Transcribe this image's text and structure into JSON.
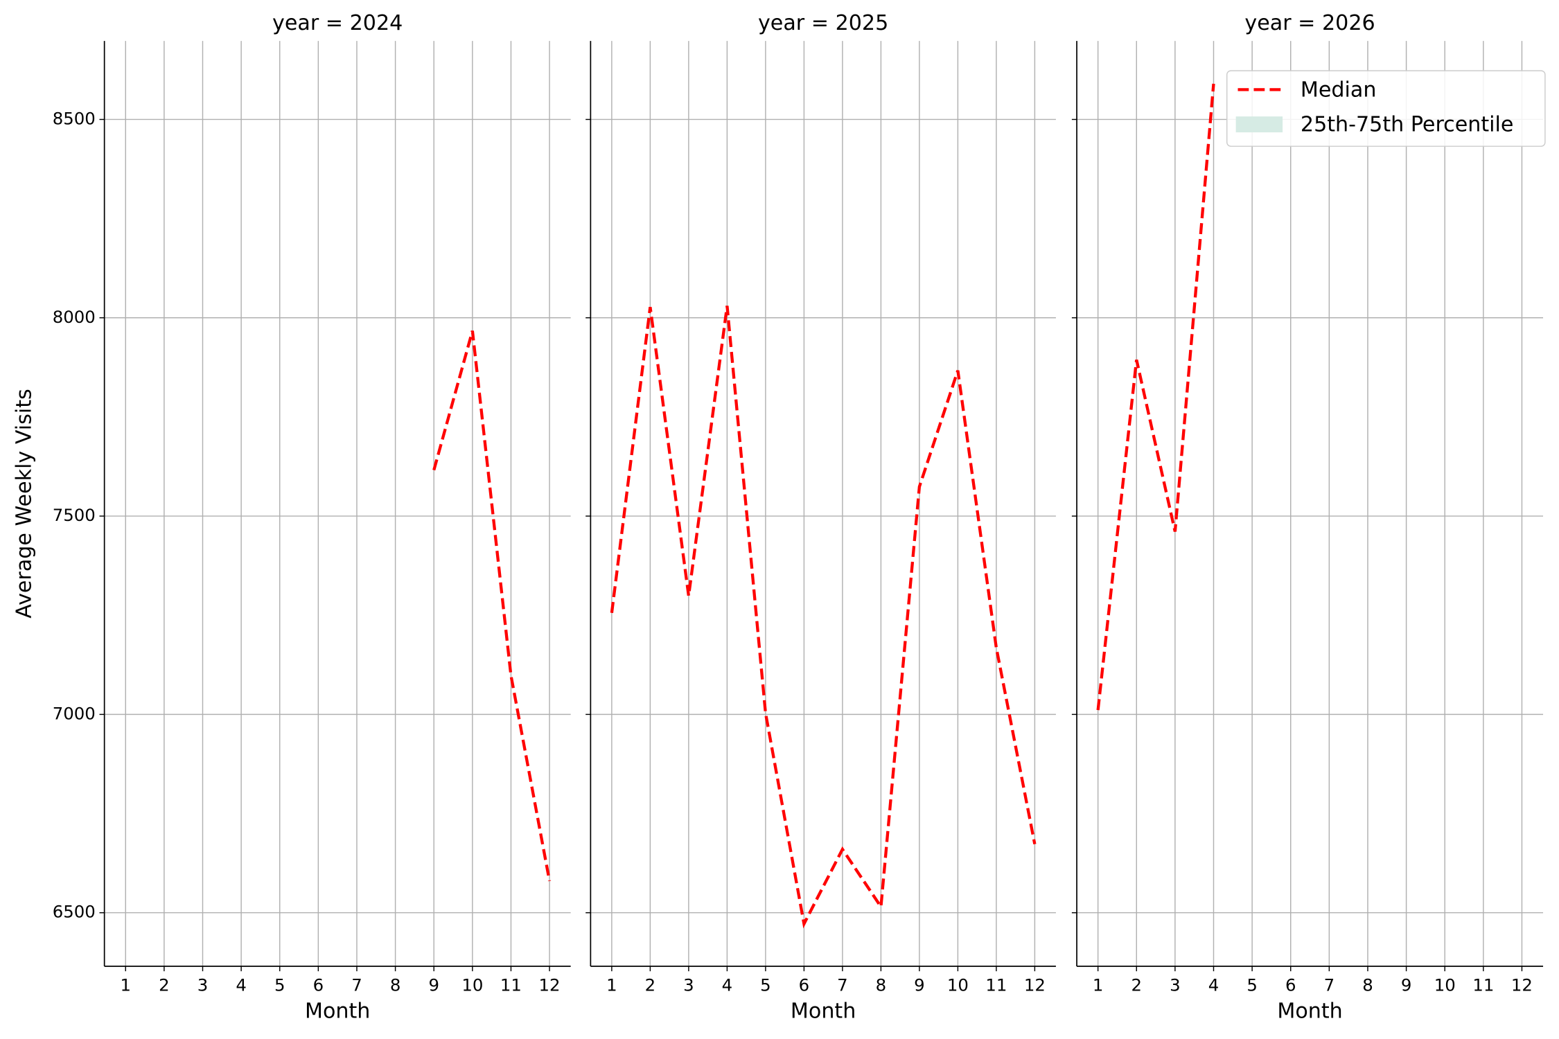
{
  "chart_data": [
    {
      "type": "line",
      "title": "year = 2024",
      "xlabel": "Month",
      "ylabel": "Average Weekly Visits",
      "x": [
        1,
        2,
        3,
        4,
        5,
        6,
        7,
        8,
        9,
        10,
        11,
        12
      ],
      "series": [
        {
          "name": "Median",
          "color": "#ff0000",
          "linestyle": "dashed",
          "values": [
            null,
            null,
            null,
            null,
            null,
            null,
            null,
            null,
            7616,
            7967,
            7098,
            6580
          ]
        }
      ],
      "xlim": [
        0.45,
        12.55
      ],
      "ylim": [
        6365,
        8698
      ],
      "xticks": [
        1,
        2,
        3,
        4,
        5,
        6,
        7,
        8,
        9,
        10,
        11,
        12
      ],
      "yticks": [
        6500,
        7000,
        7500,
        8000,
        8500
      ],
      "grid": true
    },
    {
      "type": "line",
      "title": "year = 2025",
      "xlabel": "Month",
      "x": [
        1,
        2,
        3,
        4,
        5,
        6,
        7,
        8,
        9,
        10,
        11,
        12
      ],
      "series": [
        {
          "name": "Median",
          "color": "#ff0000",
          "linestyle": "dashed",
          "values": [
            7256,
            8027,
            7299,
            8030,
            7003,
            6472,
            6660,
            6515,
            7574,
            7867,
            7168,
            6673
          ]
        }
      ],
      "xlim": [
        0.45,
        12.55
      ],
      "ylim": [
        6365,
        8698
      ],
      "xticks": [
        1,
        2,
        3,
        4,
        5,
        6,
        7,
        8,
        9,
        10,
        11,
        12
      ],
      "yticks": [
        6500,
        7000,
        7500,
        8000,
        8500
      ],
      "grid": true
    },
    {
      "type": "line",
      "title": "year = 2026",
      "xlabel": "Month",
      "x": [
        1,
        2,
        3,
        4,
        5,
        6,
        7,
        8,
        9,
        10,
        11,
        12
      ],
      "series": [
        {
          "name": "Median",
          "color": "#ff0000",
          "linestyle": "dashed",
          "values": [
            7011,
            7894,
            7461,
            8590,
            null,
            null,
            null,
            null,
            null,
            null,
            null,
            null
          ]
        }
      ],
      "band": {
        "name": "25th-75th Percentile",
        "color": "#d6ebe4"
      },
      "xlim": [
        0.45,
        12.55
      ],
      "ylim": [
        6365,
        8698
      ],
      "xticks": [
        1,
        2,
        3,
        4,
        5,
        6,
        7,
        8,
        9,
        10,
        11,
        12
      ],
      "yticks": [
        6500,
        7000,
        7500,
        8000,
        8500
      ],
      "grid": true,
      "legend": "upper right"
    }
  ]
}
